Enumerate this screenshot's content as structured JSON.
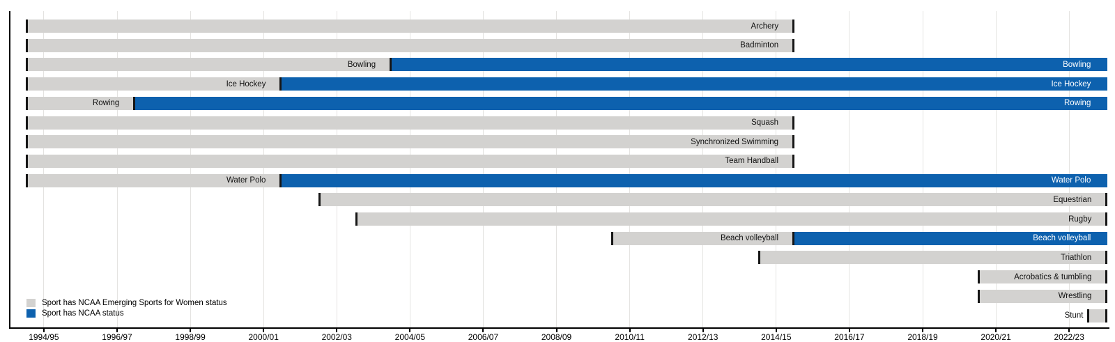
{
  "chart_data": {
    "type": "bar",
    "subtype": "horizontal-gantt-timeline",
    "title": "",
    "xlabel": "",
    "ylabel": "",
    "grid": true,
    "legend_position": "bottom-left",
    "x_axis": {
      "unit": "academic season (X.5 = start of season X/X+1)",
      "range": [
        1994.05,
        2024.1
      ],
      "tick_years": [
        1995,
        1997,
        1999,
        2001,
        2003,
        2005,
        2007,
        2009,
        2011,
        2013,
        2015,
        2017,
        2019,
        2021,
        2023
      ],
      "tick_labels": [
        "1994/95",
        "1996/97",
        "1998/99",
        "2000/01",
        "2002/03",
        "2004/05",
        "2006/07",
        "2008/09",
        "2010/11",
        "2012/13",
        "2014/15",
        "2016/17",
        "2018/19",
        "2020/21",
        "2022/23"
      ]
    },
    "colors": {
      "emerging": "#d3d2d0",
      "ncaa": "#0d61ae",
      "edge": "#161616"
    },
    "legend": [
      {
        "status": "emerging",
        "color": "#d3d2d0",
        "label": "Sport has NCAA Emerging Sports for Women status"
      },
      {
        "status": "ncaa",
        "color": "#0d61ae",
        "label": "Sport has NCAA status"
      }
    ],
    "rows": [
      {
        "sport": "Archery",
        "segments": [
          {
            "status": "emerging",
            "start": 1994.5,
            "end": 2015.5,
            "label": "Archery"
          }
        ]
      },
      {
        "sport": "Badminton",
        "segments": [
          {
            "status": "emerging",
            "start": 1994.5,
            "end": 2015.5,
            "label": "Badminton"
          }
        ]
      },
      {
        "sport": "Bowling",
        "segments": [
          {
            "status": "emerging",
            "start": 1994.5,
            "end": 2004.5,
            "label": "Bowling"
          },
          {
            "status": "ncaa",
            "start": 2004.5,
            "end": 2024.05,
            "label": "Bowling"
          }
        ]
      },
      {
        "sport": "Ice Hockey",
        "segments": [
          {
            "status": "emerging",
            "start": 1994.5,
            "end": 2001.5,
            "label": "Ice Hockey"
          },
          {
            "status": "ncaa",
            "start": 2001.5,
            "end": 2024.05,
            "label": "Ice Hockey"
          }
        ]
      },
      {
        "sport": "Rowing",
        "segments": [
          {
            "status": "emerging",
            "start": 1994.5,
            "end": 1997.5,
            "label": "Rowing"
          },
          {
            "status": "ncaa",
            "start": 1997.5,
            "end": 2024.05,
            "label": "Rowing"
          }
        ]
      },
      {
        "sport": "Squash",
        "segments": [
          {
            "status": "emerging",
            "start": 1994.5,
            "end": 2015.5,
            "label": "Squash"
          }
        ]
      },
      {
        "sport": "Synchronized Swimming",
        "segments": [
          {
            "status": "emerging",
            "start": 1994.5,
            "end": 2015.5,
            "label": "Synchronized Swimming"
          }
        ]
      },
      {
        "sport": "Team Handball",
        "segments": [
          {
            "status": "emerging",
            "start": 1994.5,
            "end": 2015.5,
            "label": "Team Handball"
          }
        ]
      },
      {
        "sport": "Water Polo",
        "segments": [
          {
            "status": "emerging",
            "start": 1994.5,
            "end": 2001.5,
            "label": "Water Polo"
          },
          {
            "status": "ncaa",
            "start": 2001.5,
            "end": 2024.05,
            "label": "Water Polo"
          }
        ]
      },
      {
        "sport": "Equestrian",
        "segments": [
          {
            "status": "emerging",
            "start": 2002.5,
            "end": 2024.05,
            "label": "Equestrian"
          }
        ]
      },
      {
        "sport": "Rugby",
        "segments": [
          {
            "status": "emerging",
            "start": 2003.5,
            "end": 2024.05,
            "label": "Rugby"
          }
        ]
      },
      {
        "sport": "Beach volleyball",
        "segments": [
          {
            "status": "emerging",
            "start": 2010.5,
            "end": 2015.5,
            "label": "Beach volleyball"
          },
          {
            "status": "ncaa",
            "start": 2015.5,
            "end": 2024.05,
            "label": "Beach volleyball"
          }
        ]
      },
      {
        "sport": "Triathlon",
        "segments": [
          {
            "status": "emerging",
            "start": 2014.5,
            "end": 2024.05,
            "label": "Triathlon"
          }
        ]
      },
      {
        "sport": "Acrobatics & tumbling",
        "segments": [
          {
            "status": "emerging",
            "start": 2020.5,
            "end": 2024.05,
            "label": "Acrobatics & tumbling"
          }
        ]
      },
      {
        "sport": "Wrestling",
        "segments": [
          {
            "status": "emerging",
            "start": 2020.5,
            "end": 2024.05,
            "label": "Wrestling"
          }
        ]
      },
      {
        "sport": "Stunt",
        "segments": [
          {
            "status": "emerging",
            "start": 2023.5,
            "end": 2024.05,
            "label": "Stunt"
          }
        ]
      }
    ]
  }
}
